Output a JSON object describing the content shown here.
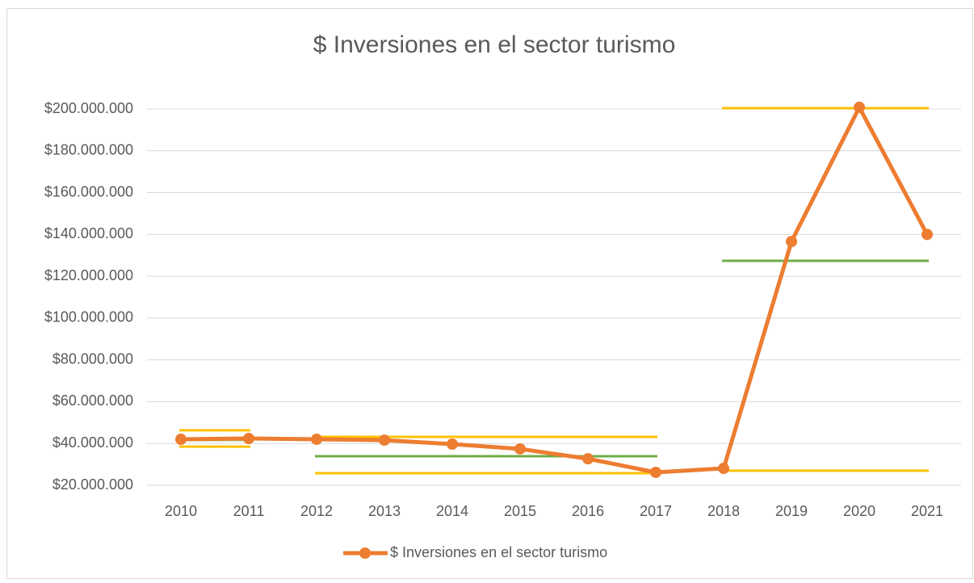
{
  "chart_data": {
    "type": "line",
    "title": "$ Inversiones en el sector turismo",
    "categories": [
      "2010",
      "2011",
      "2012",
      "2013",
      "2014",
      "2015",
      "2016",
      "2017",
      "2018",
      "2019",
      "2020",
      "2021"
    ],
    "series": [
      {
        "name": "$ Inversiones en el sector turismo",
        "color": "#ED7D31",
        "values": [
          42000000,
          42400000,
          42000000,
          41600000,
          39700000,
          37400000,
          32700000,
          26200000,
          28100000,
          136600000,
          200800000,
          140000000
        ]
      }
    ],
    "ylim": [
      20000000,
      200000000
    ],
    "yticks": [
      {
        "value": 20000000,
        "label": "$20.000.000"
      },
      {
        "value": 40000000,
        "label": "$40.000.000"
      },
      {
        "value": 60000000,
        "label": "$60.000.000"
      },
      {
        "value": 80000000,
        "label": "$80.000.000"
      },
      {
        "value": 100000000,
        "label": "$100.000.000"
      },
      {
        "value": 120000000,
        "label": "$120.000.000"
      },
      {
        "value": 140000000,
        "label": "$140.000.000"
      },
      {
        "value": 160000000,
        "label": "$160.000.000"
      },
      {
        "value": 180000000,
        "label": "$180.000.000"
      },
      {
        "value": 200000000,
        "label": "$200.000.000"
      }
    ],
    "grid": true,
    "legend": "bottom",
    "reference_lines": [
      {
        "color": "#FFC000",
        "value": 46300000,
        "from": "2010",
        "to": "2011"
      },
      {
        "color": "#FFC000",
        "value": 38500000,
        "from": "2010",
        "to": "2011"
      },
      {
        "color": "#A9D18E",
        "value": 41600000,
        "from": "2010",
        "to": "2011"
      },
      {
        "color": "#FFC000",
        "value": 43200000,
        "from": "2012",
        "to": "2017"
      },
      {
        "color": "#FFC000",
        "value": 25800000,
        "from": "2012",
        "to": "2017"
      },
      {
        "color": "#70AD47",
        "value": 33900000,
        "from": "2012",
        "to": "2017"
      },
      {
        "color": "#FFC000",
        "value": 200400000,
        "from": "2018",
        "to": "2021"
      },
      {
        "color": "#FFC000",
        "value": 27000000,
        "from": "2018",
        "to": "2021"
      },
      {
        "color": "#70AD47",
        "value": 127400000,
        "from": "2018",
        "to": "2021"
      }
    ]
  }
}
